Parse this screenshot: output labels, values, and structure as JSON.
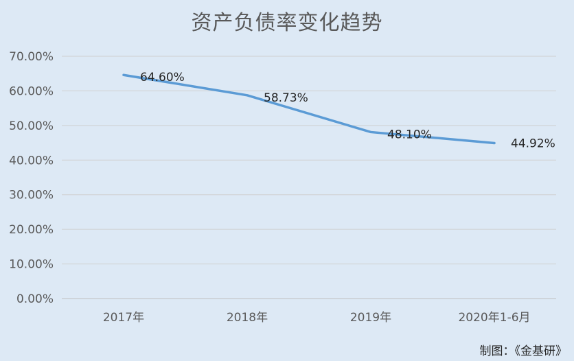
{
  "chart_data": {
    "type": "line",
    "title": "资产负债率变化趋势",
    "categories": [
      "2017年",
      "2018年",
      "2019年",
      "2020年1-6月"
    ],
    "series": [
      {
        "values": [
          64.6,
          58.73,
          48.1,
          44.92
        ],
        "labels": [
          "64.60%",
          "58.73%",
          "48.10%",
          "44.92%"
        ],
        "color": "#5b9bd5"
      }
    ],
    "yticks": [
      "0.00%",
      "10.00%",
      "20.00%",
      "30.00%",
      "40.00%",
      "50.00%",
      "60.00%",
      "70.00%"
    ],
    "ylim": [
      0,
      70
    ],
    "grid": true,
    "legend": "none"
  },
  "credit": "制图：《金基研》"
}
